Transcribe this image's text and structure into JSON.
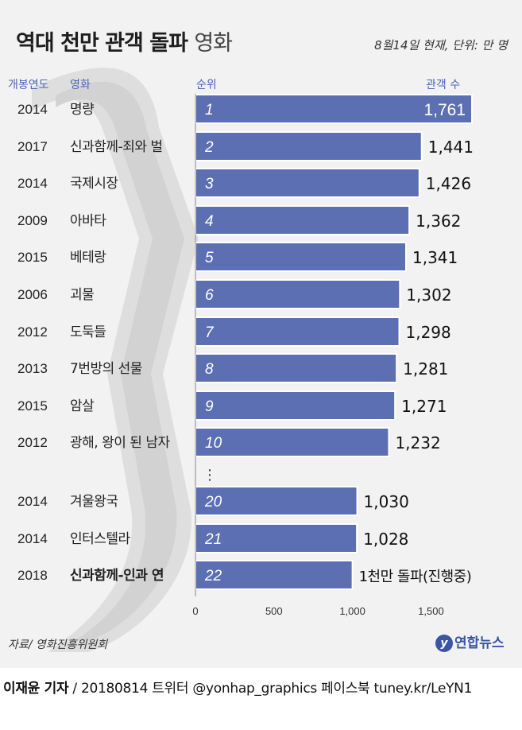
{
  "title_bold": "역대 천만 관객 돌파",
  "title_light": "영화",
  "subtitle": "8월14일 현재, 단위: 만 명",
  "headers": {
    "year": "개봉연도",
    "movie": "영화",
    "rank": "순위",
    "count": "관객 수"
  },
  "source": "자료/ 영화진흥위원회",
  "logo": {
    "mark": "y",
    "text": "연합뉴스"
  },
  "credit": {
    "author": "이재윤 기자",
    "rest": " / 20180814  트위터 @yonhap_graphics  페이스북 tuney.kr/LeYN1"
  },
  "colors": {
    "bar": "#5c6fb3",
    "bar_edge": "#ffffff",
    "header": "#4a63b4",
    "background": "#f2f2f2"
  },
  "chart_data": {
    "type": "bar",
    "orientation": "horizontal",
    "unit": "만 명",
    "xlim": [
      0,
      1761
    ],
    "x_ticks": [
      "0",
      "500",
      "1,000",
      "1,500"
    ],
    "rows": [
      {
        "year": "2014",
        "movie": "명량",
        "rank": "1",
        "value": 1761,
        "value_label": "1,761"
      },
      {
        "year": "2017",
        "movie": "신과함께-죄와 벌",
        "rank": "2",
        "value": 1441,
        "value_label": "1,441"
      },
      {
        "year": "2014",
        "movie": "국제시장",
        "rank": "3",
        "value": 1426,
        "value_label": "1,426"
      },
      {
        "year": "2009",
        "movie": "아바타",
        "rank": "4",
        "value": 1362,
        "value_label": "1,362"
      },
      {
        "year": "2015",
        "movie": "베테랑",
        "rank": "5",
        "value": 1341,
        "value_label": "1,341"
      },
      {
        "year": "2006",
        "movie": "괴물",
        "rank": "6",
        "value": 1302,
        "value_label": "1,302"
      },
      {
        "year": "2012",
        "movie": "도둑들",
        "rank": "7",
        "value": 1298,
        "value_label": "1,298"
      },
      {
        "year": "2013",
        "movie": "7번방의 선물",
        "rank": "8",
        "value": 1281,
        "value_label": "1,281"
      },
      {
        "year": "2015",
        "movie": "암살",
        "rank": "9",
        "value": 1271,
        "value_label": "1,271"
      },
      {
        "year": "2012",
        "movie": "광해, 왕이 된 남자",
        "rank": "10",
        "value": 1232,
        "value_label": "1,232"
      },
      {
        "year": "2014",
        "movie": "겨울왕국",
        "rank": "20",
        "value": 1030,
        "value_label": "1,030"
      },
      {
        "year": "2014",
        "movie": "인터스텔라",
        "rank": "21",
        "value": 1028,
        "value_label": "1,028"
      },
      {
        "year": "2018",
        "movie": "신과함께-인과 연",
        "rank": "22",
        "value": 1000,
        "value_label": "1천만 돌파(진행중)",
        "highlight": true
      }
    ],
    "ellipsis": "⋮"
  }
}
